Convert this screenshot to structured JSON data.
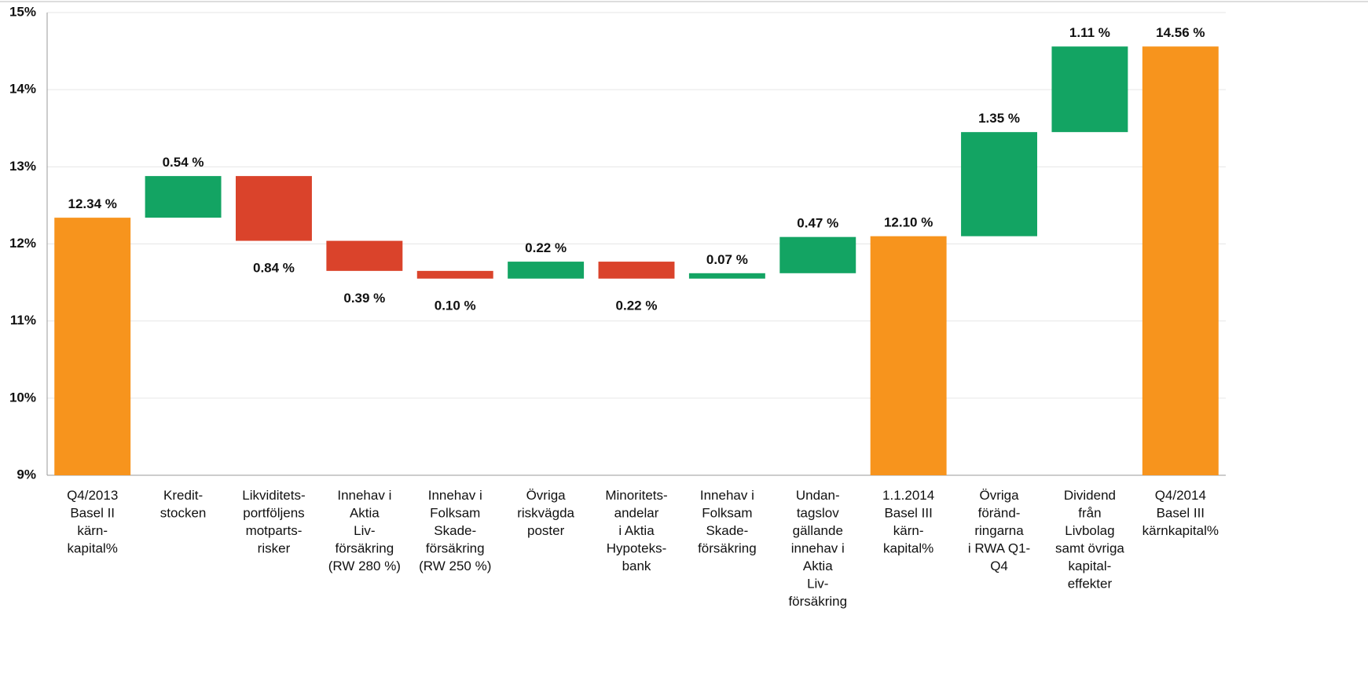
{
  "chart_data": {
    "type": "waterfall",
    "categories": [
      "Q4/2013\nBasel II\nkärn-\nkapital%",
      "Kredit-\nstocken",
      "Likviditets-\nportföljens\nmotparts-\nrisker",
      "Innehav i\nAktia\nLiv-\nförsäkring\n(RW 280 %)",
      "Innehav i\nFolksam\nSkade-\nförsäkring\n(RW 250 %)",
      "Övriga\nriskvägda\nposter",
      "Minoritets-\nandelar\ni Aktia\nHypoteks-\nbank",
      "Innehav i\nFolksam\nSkade-\nförsäkring",
      "Undan-\ntagslov\ngällande\ninnehav i\nAktia\nLiv-\nförsäkring",
      "1.1.2014\nBasel III\nkärn-\nkapital%",
      "Övriga\nföränd-\nringarna\ni RWA Q1-\nQ4",
      "Dividend\nfrån\nLivbolag\nsamt övriga\nkapital-\neffekter",
      "Q4/2014\nBasel III\nkärnkapital%"
    ],
    "values": [
      12.34,
      0.54,
      -0.84,
      -0.39,
      -0.1,
      0.22,
      -0.22,
      0.07,
      0.47,
      12.1,
      1.35,
      1.11,
      14.56
    ],
    "value_labels": [
      "12.34 %",
      "0.54 %",
      "0.84 %",
      "0.39 %",
      "0.10 %",
      "0.22 %",
      "0.22 %",
      "0.07 %",
      "0.47 %",
      "12.10 %",
      "1.35 %",
      "1.11 %",
      "14.56 %"
    ],
    "measure": [
      "total",
      "relative",
      "relative",
      "relative",
      "relative",
      "relative",
      "relative",
      "relative",
      "relative",
      "total",
      "relative",
      "relative",
      "total"
    ],
    "total_color": "#f7941d",
    "increase_color": "#13a463",
    "decrease_color": "#da432b",
    "ylim": [
      9,
      15
    ],
    "yticks": [
      {
        "value": 9,
        "label": "9%"
      },
      {
        "value": 10,
        "label": "10%"
      },
      {
        "value": 11,
        "label": "11%"
      },
      {
        "value": 12,
        "label": "12%"
      },
      {
        "value": 13,
        "label": "13%"
      },
      {
        "value": 14,
        "label": "14%"
      },
      {
        "value": 15,
        "label": "15%"
      }
    ],
    "grid": true
  }
}
